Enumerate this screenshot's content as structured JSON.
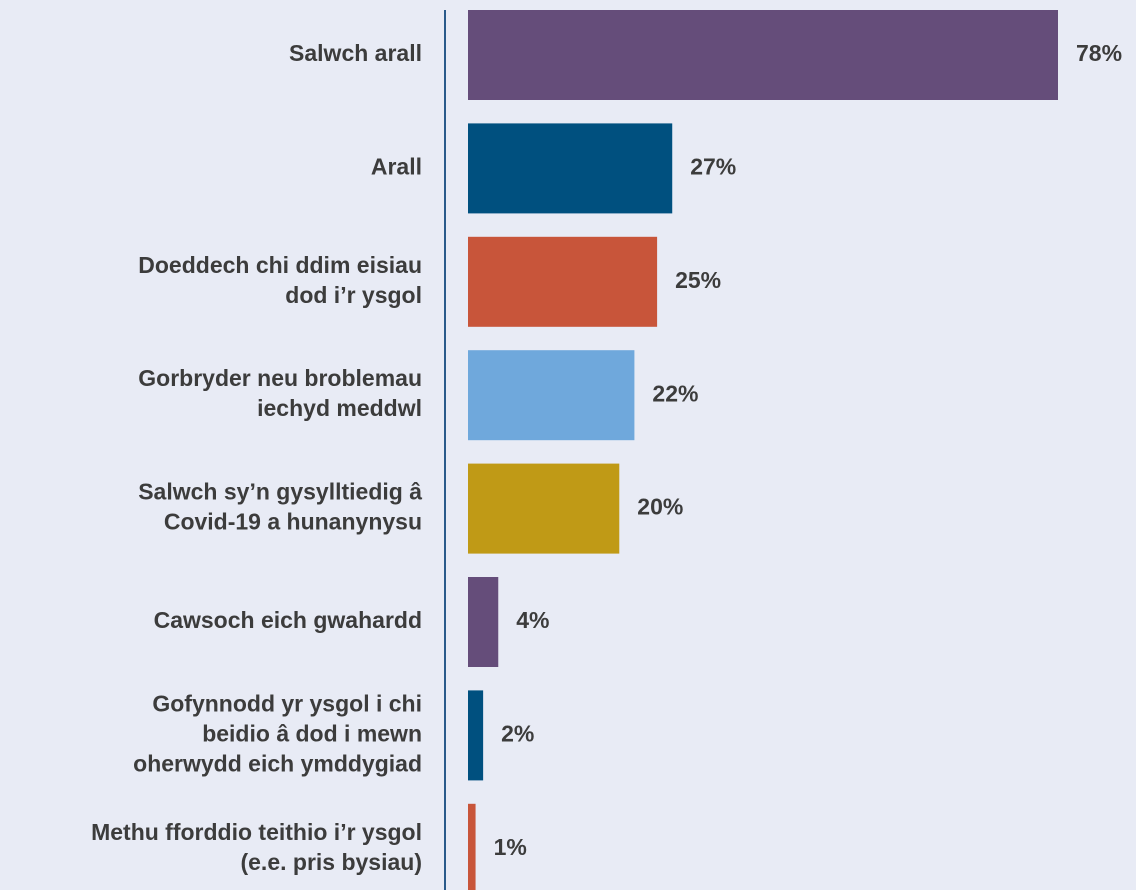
{
  "chart_data": {
    "type": "barh",
    "categories": [
      "Salwch arall",
      "Arall",
      "Doeddech chi ddim eisiau\ndod i’r ysgol",
      "Gorbryder neu broblemau\niechyd meddwl",
      "Salwch sy’n gysylltiedig â\nCovid-19 a hunanynysu",
      "Cawsoch eich gwahardd",
      "Gofynnodd yr ysgol i chi\nbeidio â dod i mewn\noherwydd eich ymddygiad",
      "Methu fforddio teithio i’r ysgol\n(e.e. pris bysiau)"
    ],
    "values": [
      78,
      27,
      25,
      22,
      20,
      4,
      2,
      1
    ],
    "value_labels": [
      "78%",
      "27%",
      "25%",
      "22%",
      "20%",
      "4%",
      "2%",
      "1%"
    ],
    "colors": [
      "#654d7a",
      "#00507f",
      "#c8553a",
      "#6fa8dc",
      "#c09a16",
      "#654d7a",
      "#00507f",
      "#c8553a"
    ],
    "xlim": [
      0,
      78
    ]
  }
}
